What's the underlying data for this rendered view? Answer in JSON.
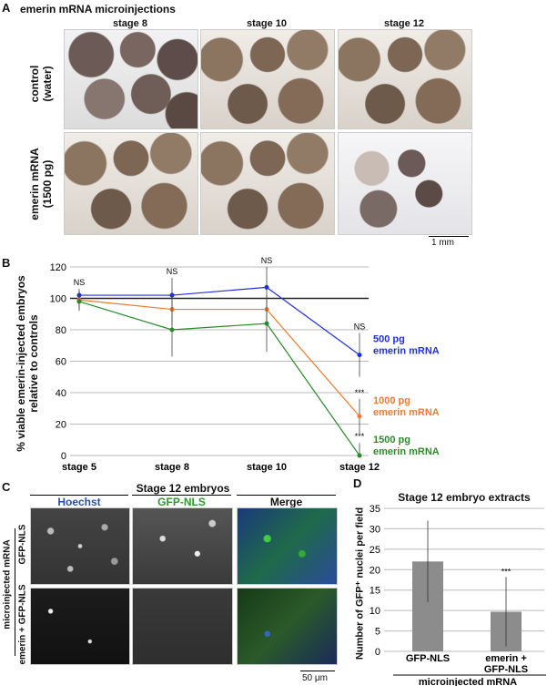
{
  "panelA": {
    "label": "A",
    "title": "emerin mRNA microinjections",
    "columns": [
      "stage 8",
      "stage 10",
      "stage 12"
    ],
    "rows": [
      {
        "line1": "control",
        "line2": "(water)"
      },
      {
        "line1": "emerin mRNA",
        "line2": "(1500 pg)"
      }
    ],
    "scale_bar": "1 mm"
  },
  "panelB": {
    "label": "B"
  },
  "panelC": {
    "label": "C",
    "title": "Stage 12 embryos",
    "columns": [
      "Hoechst",
      "GFP-NLS",
      "Merge"
    ],
    "group_label": "microinjected mRNA",
    "rows": [
      "GFP-NLS",
      "emerin + GFP-NLS"
    ],
    "scale_bar": "50 μm",
    "colors": {
      "Hoechst": "#2b4fb0",
      "GFP-NLS": "#2a9a2a",
      "Merge": "#111111"
    }
  },
  "panelD": {
    "label": "D"
  },
  "chart_data": [
    {
      "type": "line",
      "title": "",
      "ylabel": "% viable emerin-injected embryos relative to controls",
      "categories": [
        "stage 5",
        "stage 8",
        "stage 10",
        "stage 12"
      ],
      "ylim": [
        0,
        120
      ],
      "yticks": [
        0,
        20,
        40,
        60,
        80,
        100,
        120
      ],
      "reference_line": 100,
      "grid": true,
      "series": [
        {
          "name": "500 pg emerin mRNA",
          "label_lines": [
            "500 pg",
            "emerin mRNA"
          ],
          "color": "#1f2fe0",
          "values": [
            102,
            102,
            107,
            64
          ],
          "errors": [
            4,
            11,
            13,
            14
          ]
        },
        {
          "name": "1000 pg emerin mRNA",
          "label_lines": [
            "1000 pg",
            "emerin mRNA"
          ],
          "color": "#f07a30",
          "values": [
            99,
            93,
            93,
            25
          ],
          "errors": [
            6,
            10,
            9,
            11
          ]
        },
        {
          "name": "1500 pg emerin mRNA",
          "label_lines": [
            "1500 pg",
            "emerin mRNA"
          ],
          "color": "#2a8a2a",
          "values": [
            98,
            80,
            84,
            0
          ],
          "errors": [
            6,
            17,
            18,
            8
          ]
        }
      ],
      "annotations": [
        {
          "category": "stage 5",
          "text": "NS"
        },
        {
          "category": "stage 8",
          "text": "NS"
        },
        {
          "category": "stage 10",
          "text": "NS"
        },
        {
          "category": "stage 12",
          "text": "NS",
          "series": "500 pg emerin mRNA"
        },
        {
          "category": "stage 12",
          "text": "***",
          "series": "1000 pg emerin mRNA"
        },
        {
          "category": "stage 12",
          "text": "***",
          "series": "1500 pg emerin mRNA"
        }
      ]
    },
    {
      "type": "bar",
      "title": "Stage 12 embryo extracts",
      "ylabel": "Number of GFP⁺ nuclei per field",
      "xlabel": "microinjected mRNA",
      "categories": [
        [
          "GFP-NLS"
        ],
        [
          "emerin +",
          "GFP-NLS"
        ]
      ],
      "values": [
        22,
        9.7
      ],
      "errors": [
        10,
        8.5
      ],
      "ylim": [
        0,
        35
      ],
      "yticks": [
        0,
        5,
        10,
        15,
        20,
        25,
        30,
        35
      ],
      "annotations": [
        "",
        "***"
      ],
      "color": "#8c8c8c",
      "grid": true
    }
  ]
}
